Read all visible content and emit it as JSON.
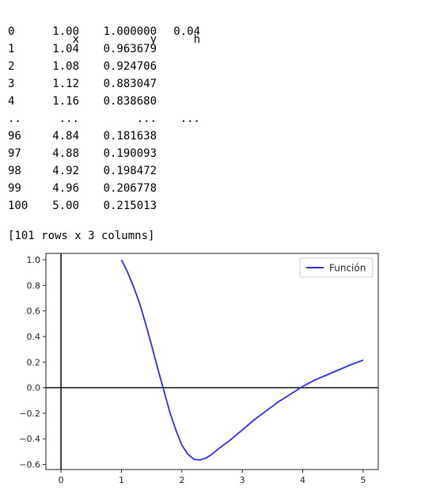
{
  "table": {
    "columns": [
      "x",
      "y",
      "h"
    ],
    "rows": [
      [
        "0",
        "1.00",
        "1.000000",
        "0.04"
      ],
      [
        "1",
        "1.04",
        "0.963679",
        ""
      ],
      [
        "2",
        "1.08",
        "0.924706",
        ""
      ],
      [
        "3",
        "1.12",
        "0.883047",
        ""
      ],
      [
        "4",
        "1.16",
        "0.838680",
        ""
      ],
      [
        "..",
        "...",
        "...",
        "..."
      ],
      [
        "96",
        "4.84",
        "0.181638",
        ""
      ],
      [
        "97",
        "4.88",
        "0.190093",
        ""
      ],
      [
        "98",
        "4.92",
        "0.198472",
        ""
      ],
      [
        "99",
        "4.96",
        "0.206778",
        ""
      ],
      [
        "100",
        "5.00",
        "0.215013",
        ""
      ]
    ],
    "footer": "[101 rows x 3 columns]"
  },
  "chart_data": {
    "type": "line",
    "title": "",
    "xlabel": "",
    "ylabel": "",
    "xlim": [
      -0.25,
      5.25
    ],
    "ylim": [
      -0.64,
      1.05
    ],
    "xticks": [
      "0",
      "1",
      "2",
      "3",
      "4",
      "5"
    ],
    "yticks": [
      "1.0",
      "0.8",
      "0.6",
      "0.4",
      "0.2",
      "0.0",
      "−0.2",
      "−0.4",
      "−0.6"
    ],
    "grid": false,
    "legend": "top-right",
    "axis_lines": {
      "x0": true,
      "y0": true
    },
    "series": [
      {
        "name": "Función",
        "color": "#2b2bff",
        "x": [
          1.0,
          1.1,
          1.2,
          1.3,
          1.4,
          1.5,
          1.6,
          1.7,
          1.8,
          1.9,
          2.0,
          2.1,
          2.2,
          2.3,
          2.4,
          2.5,
          2.6,
          2.8,
          3.0,
          3.2,
          3.4,
          3.6,
          3.8,
          4.0,
          4.2,
          4.4,
          4.6,
          4.8,
          5.0
        ],
        "values": [
          1.0,
          0.905,
          0.79,
          0.66,
          0.5,
          0.33,
          0.15,
          -0.02,
          -0.19,
          -0.33,
          -0.45,
          -0.52,
          -0.56,
          -0.565,
          -0.55,
          -0.52,
          -0.48,
          -0.41,
          -0.33,
          -0.25,
          -0.18,
          -0.11,
          -0.05,
          0.01,
          0.06,
          0.1,
          0.14,
          0.18,
          0.215
        ]
      }
    ]
  }
}
